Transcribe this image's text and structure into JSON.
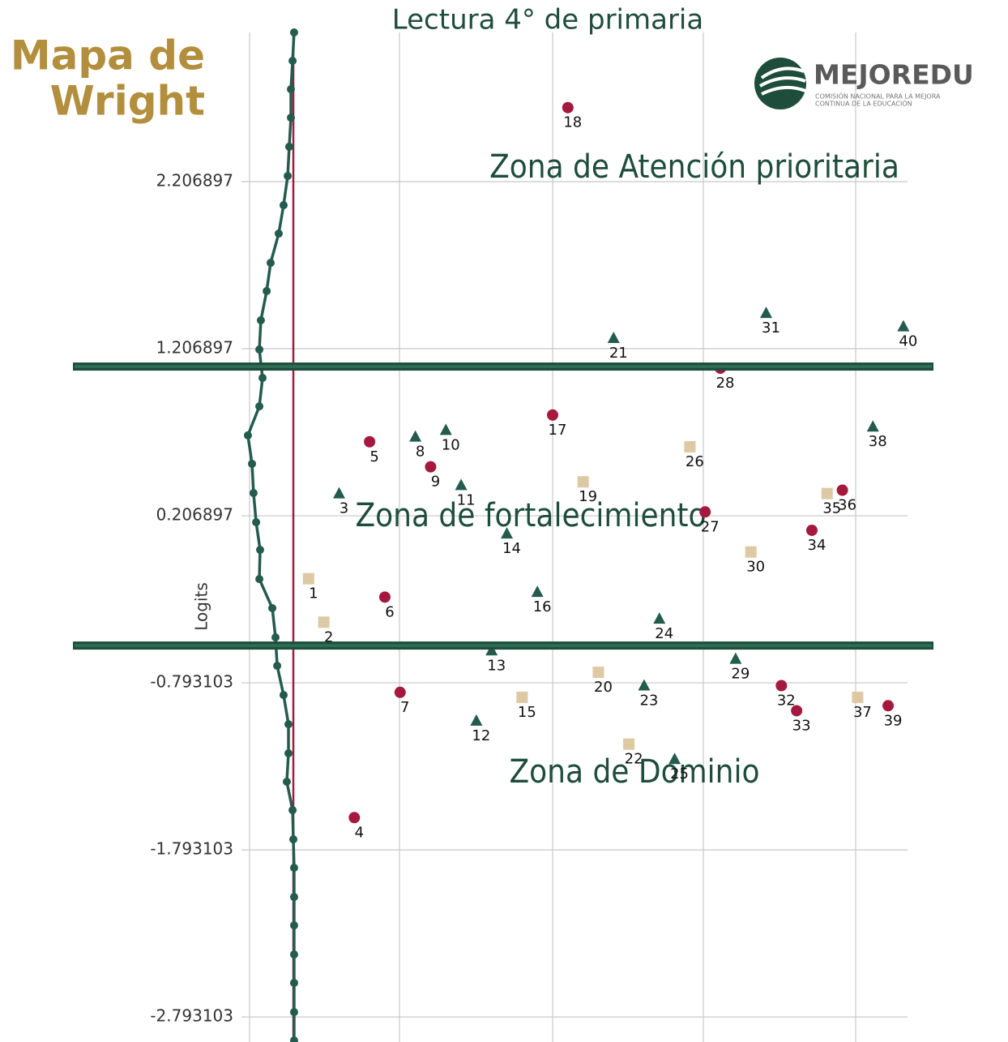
{
  "chart_data": {
    "type": "scatter",
    "title": "Lectura 4° de primaria",
    "side_title": [
      "Mapa de",
      "Wright"
    ],
    "ylabel": "Logits",
    "logo": {
      "name": "MEJOREDU",
      "subtitle": [
        "COMISIÓN NACIONAL PARA LA MEJORA",
        "CONTINUA DE LA EDUCACIÓN"
      ]
    },
    "annotations": [
      "Zona de Atención prioritaria",
      "Zona de fortalecimiento",
      "Zona de Dominio"
    ],
    "ylim": [
      -2.943,
      3.1
    ],
    "yticks": [
      2.206897,
      1.206897,
      0.206897,
      -0.793103,
      -1.793103,
      -2.793103
    ],
    "xlim": [
      -3.2,
      40.5
    ],
    "grid": true,
    "vline": {
      "x": 0,
      "color": "#a4193d"
    },
    "hlines": {
      "values": [
        1.1,
        -0.57
      ],
      "color": "#1e4d3c"
    },
    "series": [
      {
        "marker": "circle",
        "color": "#a4193d",
        "x": [
          4,
          5,
          6,
          7,
          9,
          17,
          18,
          27,
          28,
          32,
          33,
          34,
          36,
          39
        ],
        "values": [
          -1.6,
          0.65,
          -0.28,
          -0.85,
          0.5,
          0.81,
          2.65,
          0.23,
          1.09,
          -0.81,
          -0.96,
          0.12,
          0.36,
          -0.93
        ]
      },
      {
        "marker": "triangle",
        "color": "#235b4e",
        "x": [
          3,
          8,
          10,
          11,
          12,
          13,
          14,
          16,
          21,
          23,
          24,
          25,
          29,
          31,
          38,
          40
        ],
        "values": [
          0.34,
          0.68,
          0.72,
          0.39,
          -1.02,
          -0.6,
          0.1,
          -0.25,
          1.27,
          -0.81,
          -0.41,
          -1.25,
          -0.65,
          1.42,
          0.74,
          1.34
        ]
      },
      {
        "marker": "square",
        "color": "#ddc9a3",
        "x": [
          1,
          2,
          15,
          19,
          20,
          22,
          26,
          30,
          35,
          37
        ],
        "values": [
          -0.17,
          -0.43,
          -0.88,
          0.41,
          -0.73,
          -1.16,
          0.62,
          -0.01,
          0.34,
          -0.88
        ]
      },
      {
        "type": "line",
        "color": "#235b4e",
        "x": [
          0.05,
          -0.05,
          -0.16,
          -0.16,
          -0.27,
          -0.37,
          -0.64,
          -0.96,
          -1.49,
          -1.75,
          -2.13,
          -2.23,
          -2.02,
          -2.23,
          -2.98,
          -2.71,
          -2.61,
          -2.44,
          -2.18,
          -2.23,
          -1.38,
          -1.17,
          -1.06,
          -0.64,
          -0.32,
          -0.32,
          -0.43,
          -0.05,
          0,
          0.05,
          0.05,
          0.05,
          0.05,
          0.05,
          0.05,
          0.05
        ],
        "values": [
          3.1,
          2.93,
          2.76,
          2.59,
          2.416,
          2.241,
          2.066,
          1.896,
          1.721,
          1.552,
          1.377,
          1.202,
          1.032,
          0.862,
          0.688,
          0.518,
          0.343,
          0.168,
          0.003,
          -0.172,
          -0.346,
          -0.521,
          -0.691,
          -0.866,
          -1.041,
          -1.215,
          -1.385,
          -1.555,
          -1.73,
          -1.9,
          -2.075,
          -2.245,
          -2.419,
          -2.589,
          -2.764,
          -2.934
        ]
      }
    ]
  }
}
